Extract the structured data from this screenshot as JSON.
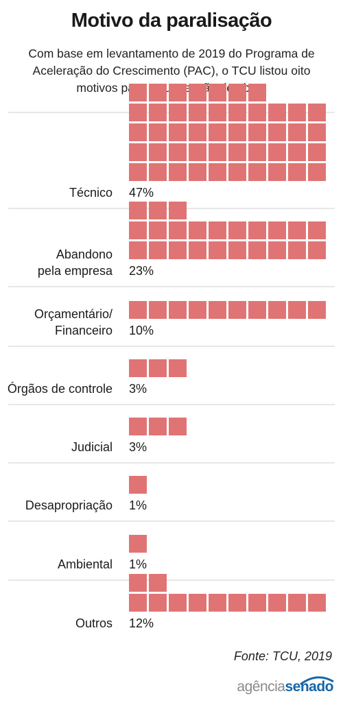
{
  "chart_data": {
    "type": "bar",
    "title": "Motivo da paralisação",
    "subtitle": "Com base em levantamento de 2019 do Programa de Aceleração do Crescimento (PAC), o TCU listou oito motivos para a suspensão de obras",
    "categories": [
      [
        "Técnico"
      ],
      [
        "Abandono",
        "pela empresa"
      ],
      [
        "Orçamentário/",
        "Financeiro"
      ],
      [
        "Órgãos de controle"
      ],
      [
        "Judicial"
      ],
      [
        "Desapropriação"
      ],
      [
        "Ambiental"
      ],
      [
        "Outros"
      ]
    ],
    "values": [
      47,
      23,
      10,
      3,
      3,
      1,
      1,
      12
    ],
    "value_labels": [
      "47%",
      "23%",
      "10%",
      "3%",
      "3%",
      "1%",
      "1%",
      "12%"
    ],
    "unit": "%",
    "source": "Fonte: TCU, 2019",
    "colors": {
      "bar": "#e07474",
      "grid": "#cfcfcf",
      "text": "#1a1a1a"
    }
  },
  "brand": {
    "part1": "agência",
    "part2": "senado"
  }
}
